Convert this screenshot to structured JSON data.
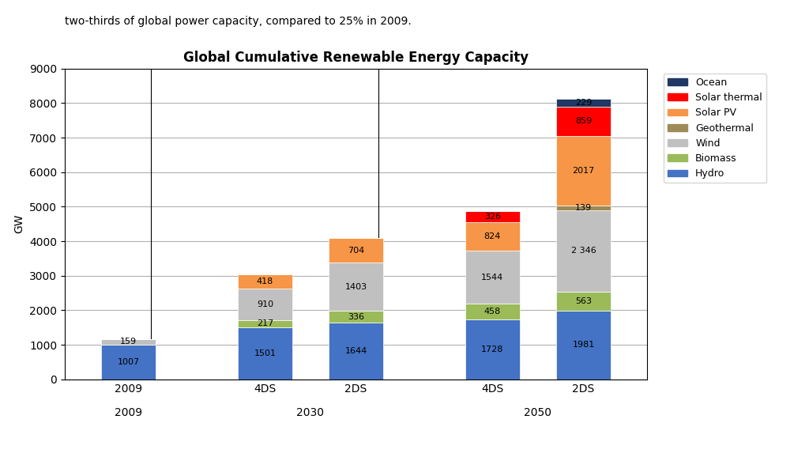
{
  "chart_data": {
    "type": "bar",
    "stacked": true,
    "title": "Global Cumulative Renewable Energy Capacity",
    "annotations": [
      "two-thirds of global power capacity, compared to 25% in 2009."
    ],
    "y_label": "GW",
    "categories": [
      "2009",
      "4DS",
      "2DS",
      "4DS",
      "2DS"
    ],
    "category_groups": [
      {
        "label": "2009",
        "size": 1
      },
      {
        "label": "2030",
        "size": 2
      },
      {
        "label": "2050",
        "size": 2
      }
    ],
    "series": [
      {
        "name": "Hydro",
        "color": "#4472C4",
        "values": [
          1007,
          1501,
          1644,
          1728,
          1981
        ],
        "value_labels": [
          "1007",
          "1501",
          "1644",
          "1728",
          "1981"
        ]
      },
      {
        "name": "Biomass",
        "color": "#9BBB59",
        "values": [
          0,
          217,
          336,
          458,
          563
        ],
        "value_labels": [
          null,
          "217",
          "336",
          "458",
          "563"
        ]
      },
      {
        "name": "Wind",
        "color": "#C0C0C0",
        "values": [
          159,
          910,
          1403,
          1544,
          2346
        ],
        "value_labels": [
          "159",
          "910",
          "1403",
          "1544",
          "2 346"
        ]
      },
      {
        "name": "Geothermal",
        "color": "#9E8B56",
        "values": [
          0,
          0,
          0,
          0,
          139
        ],
        "value_labels": [
          null,
          null,
          null,
          null,
          "139"
        ]
      },
      {
        "name": "Solar PV",
        "color": "#F79646",
        "values": [
          0,
          418,
          704,
          824,
          2017
        ],
        "value_labels": [
          null,
          "418",
          "704",
          "824",
          "2017"
        ]
      },
      {
        "name": "Solar thermal",
        "color": "#FF0000",
        "values": [
          0,
          0,
          0,
          326,
          859
        ],
        "value_labels": [
          null,
          null,
          null,
          "326",
          "859"
        ]
      },
      {
        "name": "Ocean",
        "color": "#1F3864",
        "values": [
          0,
          0,
          0,
          0,
          229
        ],
        "value_labels": [
          null,
          null,
          null,
          null,
          "229"
        ]
      }
    ],
    "ylim": [
      0,
      9000
    ],
    "yticks": [
      0,
      1000,
      2000,
      3000,
      4000,
      5000,
      6000,
      7000,
      8000,
      9000
    ],
    "grid": true,
    "data_labels": true,
    "legend": "upper left"
  }
}
